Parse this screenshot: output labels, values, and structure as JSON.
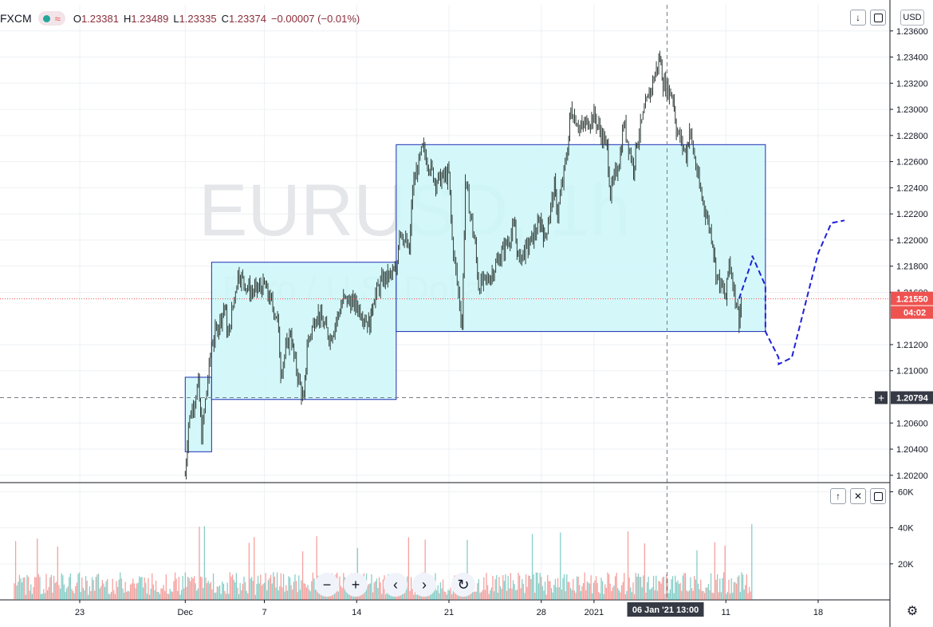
{
  "header": {
    "symbol": "FXCM",
    "approx_glyph": "≈",
    "ohlc": [
      {
        "key": "O",
        "value": "1.23381"
      },
      {
        "key": "H",
        "value": "1.23489"
      },
      {
        "key": "L",
        "value": "1.23335"
      },
      {
        "key": "C",
        "value": "1.23374"
      },
      {
        "key": "",
        "value": "−0.00007 (−0.01%)"
      }
    ]
  },
  "controls": {
    "currency": "USD",
    "down_arrow": "↓",
    "up_arrow": "↑",
    "close_x": "✕",
    "zoom_out": "−",
    "zoom_in": "+",
    "prev": "‹",
    "next": "›",
    "reset": "↻",
    "settings": "⚙",
    "crosshair_plus": "+"
  },
  "colors": {
    "up": "#26a69a",
    "down": "#ef5350",
    "candles": "#2f3b36",
    "box_fill": "#cdf7f9",
    "box_stroke": "#1c2bb2",
    "projection": "#2020d9",
    "axis_badge": "#363a45",
    "current_price": "#ef5350"
  },
  "chart_data": {
    "type": "line",
    "title": "",
    "watermark": "EURUSD, 1h",
    "watermark_sub": "Euro / U.S. Dollar",
    "x_ticks": [
      {
        "label": "23",
        "date": "2020-11-23"
      },
      {
        "label": "Dec",
        "date": "2020-12-01"
      },
      {
        "label": "7",
        "date": "2020-12-07"
      },
      {
        "label": "14",
        "date": "2020-12-14"
      },
      {
        "label": "21",
        "date": "2020-12-21"
      },
      {
        "label": "28",
        "date": "2020-12-28"
      },
      {
        "label": "2021",
        "date": "2021-01-01"
      },
      {
        "label": "11",
        "date": "2021-01-11"
      },
      {
        "label": "18",
        "date": "2021-01-18"
      }
    ],
    "y_ticks": [
      "1.20200",
      "1.20400",
      "1.20600",
      "1.21000",
      "1.21200",
      "1.21600",
      "1.21800",
      "1.22000",
      "1.22200",
      "1.22400",
      "1.22600",
      "1.22800",
      "1.23000",
      "1.23200",
      "1.23400",
      "1.23600"
    ],
    "ylim": [
      1.2015,
      1.238
    ],
    "price_path": [
      [
        "2020-12-01",
        1.202
      ],
      [
        "2020-12-01",
        1.206
      ],
      [
        "2020-12-02",
        1.209
      ],
      [
        "2020-12-02",
        1.205
      ],
      [
        "2020-12-03",
        1.212
      ],
      [
        "2020-12-04",
        1.215
      ],
      [
        "2020-12-04",
        1.2125
      ],
      [
        "2020-12-05",
        1.2175
      ],
      [
        "2020-12-06",
        1.216
      ],
      [
        "2020-12-07",
        1.2165
      ],
      [
        "2020-12-08",
        1.214
      ],
      [
        "2020-12-08",
        1.21
      ],
      [
        "2020-12-09",
        1.213
      ],
      [
        "2020-12-09",
        1.211
      ],
      [
        "2020-12-10",
        1.2075
      ],
      [
        "2020-12-10",
        1.212
      ],
      [
        "2020-12-11",
        1.2145
      ],
      [
        "2020-12-12",
        1.2125
      ],
      [
        "2020-12-13",
        1.2155
      ],
      [
        "2020-12-14",
        1.215
      ],
      [
        "2020-12-15",
        1.2135
      ],
      [
        "2020-12-15",
        1.2155
      ],
      [
        "2020-12-16",
        1.217
      ],
      [
        "2020-12-17",
        1.2175
      ],
      [
        "2020-12-17",
        1.221
      ],
      [
        "2020-12-18",
        1.219
      ],
      [
        "2020-12-18",
        1.224
      ],
      [
        "2020-12-19",
        1.227
      ],
      [
        "2020-12-20",
        1.2245
      ],
      [
        "2020-12-21",
        1.225
      ],
      [
        "2020-12-21",
        1.22
      ],
      [
        "2020-12-22",
        1.2135
      ],
      [
        "2020-12-22",
        1.2245
      ],
      [
        "2020-12-23",
        1.2195
      ],
      [
        "2020-12-23",
        1.2165
      ],
      [
        "2020-12-24",
        1.217
      ],
      [
        "2020-12-25",
        1.219
      ],
      [
        "2020-12-26",
        1.221
      ],
      [
        "2020-12-26",
        1.2185
      ],
      [
        "2020-12-27",
        1.2195
      ],
      [
        "2020-12-28",
        1.2215
      ],
      [
        "2020-12-28",
        1.22
      ],
      [
        "2020-12-29",
        1.224
      ],
      [
        "2020-12-29",
        1.222
      ],
      [
        "2020-12-30",
        1.227
      ],
      [
        "2020-12-30",
        1.23
      ],
      [
        "2020-12-31",
        1.2285
      ],
      [
        "2021-01-01",
        1.2295
      ],
      [
        "2021-01-02",
        1.227
      ],
      [
        "2021-01-02",
        1.2235
      ],
      [
        "2021-01-03",
        1.2265
      ],
      [
        "2021-01-03",
        1.229
      ],
      [
        "2021-01-04",
        1.2255
      ],
      [
        "2021-01-04",
        1.2275
      ],
      [
        "2021-01-05",
        1.2305
      ],
      [
        "2021-01-06",
        1.234
      ],
      [
        "2021-01-06",
        1.232
      ],
      [
        "2021-01-07",
        1.231
      ],
      [
        "2021-01-07",
        1.2285
      ],
      [
        "2021-01-08",
        1.2265
      ],
      [
        "2021-01-08",
        1.2285
      ],
      [
        "2021-01-09",
        1.224
      ],
      [
        "2021-01-10",
        1.22
      ],
      [
        "2021-01-10",
        1.2175
      ],
      [
        "2021-01-11",
        1.2155
      ],
      [
        "2021-01-11",
        1.2185
      ],
      [
        "2021-01-12",
        1.214
      ],
      [
        "2021-01-12",
        1.216
      ]
    ],
    "price_range": {
      "low": 1.2016,
      "high": 1.23489
    },
    "boxes": [
      {
        "x0": "2020-12-01",
        "x1": "2020-12-03",
        "y0": 1.2038,
        "y1": 1.2095
      },
      {
        "x0": "2020-12-03",
        "x1": "2020-12-17",
        "y0": 1.2078,
        "y1": 1.2183
      },
      {
        "x0": "2020-12-17",
        "x1": "2021-01-14",
        "y0": 1.213,
        "y1": 1.2273
      }
    ],
    "projection": [
      [
        "2021-01-12",
        1.2155
      ],
      [
        "2021-01-13",
        1.2185
      ],
      [
        "2021-01-13",
        1.2188
      ],
      [
        "2021-01-14",
        1.2165
      ],
      [
        "2021-01-14",
        1.213
      ],
      [
        "2021-01-15",
        1.211
      ],
      [
        "2021-01-15",
        1.2105
      ],
      [
        "2021-01-16",
        1.211
      ],
      [
        "2021-01-17",
        1.215
      ],
      [
        "2021-01-18",
        1.219
      ],
      [
        "2021-01-19",
        1.2213
      ],
      [
        "2021-01-20",
        1.2215
      ]
    ],
    "current_price": {
      "value": 1.2155,
      "label": "1.21550",
      "countdown": "04:02"
    },
    "crosshair": {
      "date": "2021-01-06",
      "price": 1.20794,
      "price_label": "1.20794",
      "time_label": "06 Jan '21   13:00"
    },
    "volume": {
      "y_ticks": [
        {
          "label": "20K",
          "value": 20000
        },
        {
          "label": "40K",
          "value": 40000
        },
        {
          "label": "60K",
          "value": 60000
        }
      ],
      "ylim": [
        0,
        62000
      ],
      "peak": 43000,
      "typical": 14000
    },
    "grid": true
  }
}
